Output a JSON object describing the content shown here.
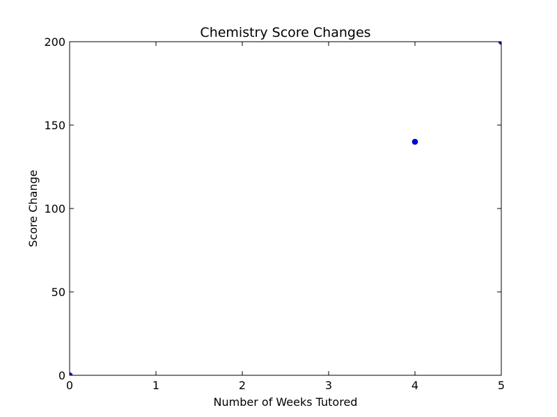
{
  "chart_data": {
    "type": "scatter",
    "title": "Chemistry Score Changes",
    "xlabel": "Number of Weeks Tutored",
    "ylabel": "Score Change",
    "xlim": [
      0,
      5
    ],
    "ylim": [
      0,
      200
    ],
    "xticks": [
      0,
      1,
      2,
      3,
      4,
      5
    ],
    "yticks": [
      0,
      50,
      100,
      150,
      200
    ],
    "xtick_labels": [
      "0",
      "1",
      "2",
      "3",
      "4",
      "5"
    ],
    "ytick_labels": [
      "0",
      "50",
      "100",
      "150",
      "200"
    ],
    "grid": false,
    "legend": "none",
    "series": [
      {
        "color": "#0000ff",
        "points": [
          {
            "x": 0,
            "y": 0
          },
          {
            "x": 4,
            "y": 140
          },
          {
            "x": 5,
            "y": 200
          }
        ]
      }
    ]
  }
}
